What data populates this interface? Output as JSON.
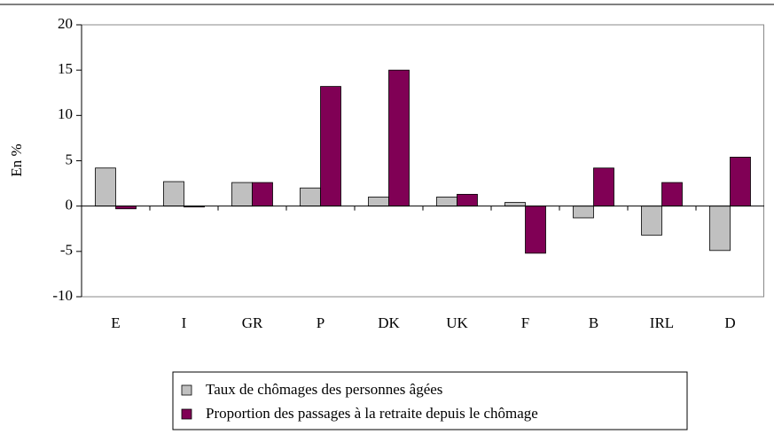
{
  "chart_data": {
    "type": "bar",
    "ylabel": "En %",
    "categories": [
      "E",
      "I",
      "GR",
      "P",
      "DK",
      "UK",
      "F",
      "B",
      "IRL",
      "D"
    ],
    "series": [
      {
        "name": "Taux de chômages des personnes âgées",
        "color": "#c0c0c0",
        "values": [
          4.2,
          2.7,
          2.6,
          2.0,
          1.0,
          1.0,
          0.4,
          -1.3,
          -3.2,
          -4.9
        ]
      },
      {
        "name": "Proportion des passages à la retraite depuis le chômage",
        "color": "#800055",
        "values": [
          -0.3,
          -0.1,
          2.6,
          13.2,
          15.0,
          1.3,
          -5.2,
          4.2,
          2.6,
          5.4
        ]
      }
    ],
    "ylim": [
      -10,
      20
    ],
    "yticks": [
      -10,
      -5,
      0,
      5,
      10,
      15,
      20
    ],
    "grid": false
  }
}
